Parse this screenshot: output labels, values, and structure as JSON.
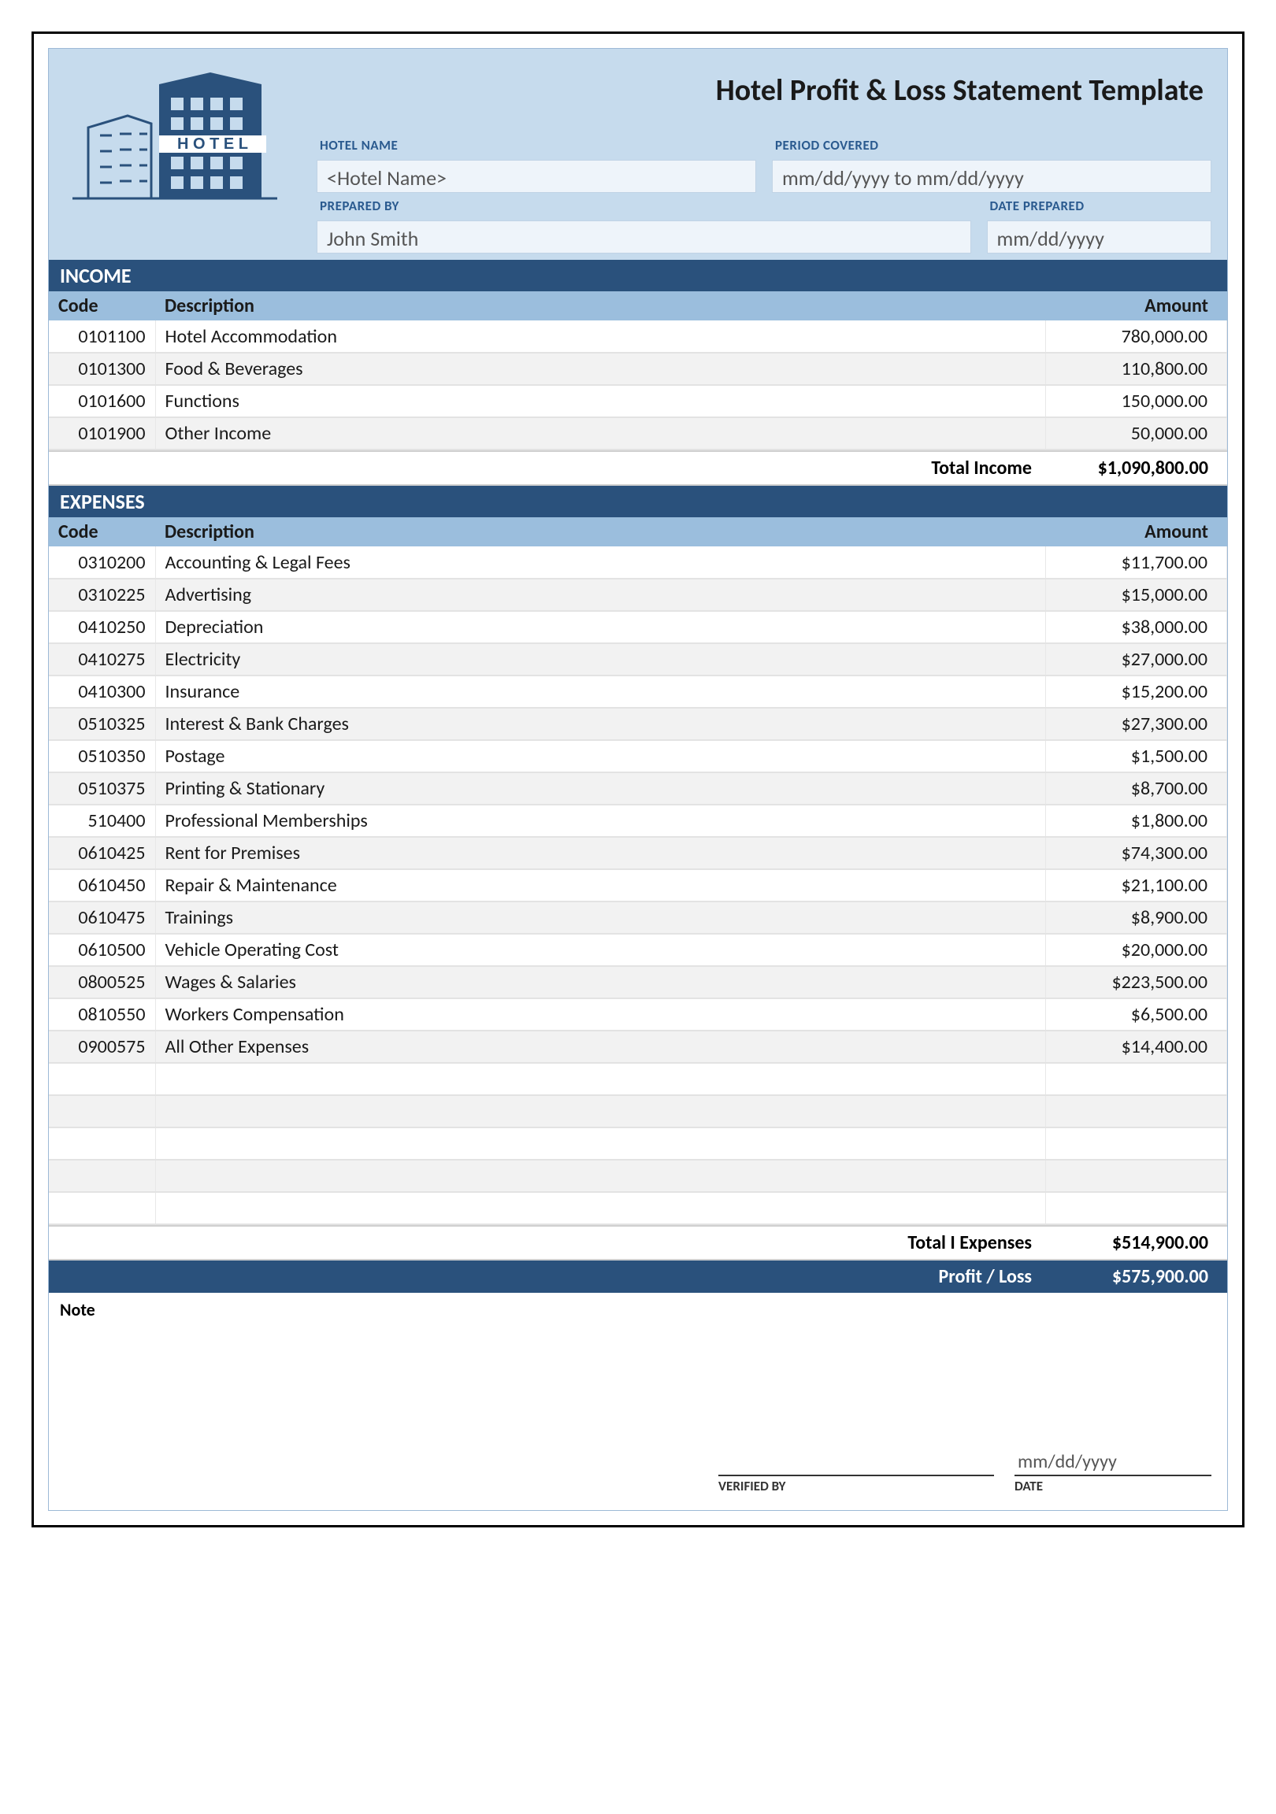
{
  "title": "Hotel Profit & Loss Statement Template",
  "meta": {
    "hotel_name_label": "HOTEL NAME",
    "hotel_name_value": "<Hotel Name>",
    "period_label": "PERIOD COVERED",
    "period_value": "mm/dd/yyyy to mm/dd/yyyy",
    "prepared_by_label": "PREPARED BY",
    "prepared_by_value": "John Smith",
    "date_prepared_label": "DATE PREPARED",
    "date_prepared_value": "mm/dd/yyyy"
  },
  "income": {
    "title": "INCOME",
    "col_code": "Code",
    "col_desc": "Description",
    "col_amount": "Amount",
    "rows": [
      {
        "code": "0101100",
        "desc": "Hotel Accommodation",
        "amount": "780,000.00"
      },
      {
        "code": "0101300",
        "desc": "Food & Beverages",
        "amount": "110,800.00"
      },
      {
        "code": "0101600",
        "desc": "Functions",
        "amount": "150,000.00"
      },
      {
        "code": "0101900",
        "desc": "Other Income",
        "amount": "50,000.00"
      }
    ],
    "total_label": "Total Income",
    "total_value": "$1,090,800.00"
  },
  "expenses": {
    "title": "EXPENSES",
    "col_code": "Code",
    "col_desc": "Description",
    "col_amount": "Amount",
    "rows": [
      {
        "code": "0310200",
        "desc": "Accounting & Legal Fees",
        "amount": "$11,700.00"
      },
      {
        "code": "0310225",
        "desc": "Advertising",
        "amount": "$15,000.00"
      },
      {
        "code": "0410250",
        "desc": "Depreciation",
        "amount": "$38,000.00"
      },
      {
        "code": "0410275",
        "desc": "Electricity",
        "amount": "$27,000.00"
      },
      {
        "code": "0410300",
        "desc": "Insurance",
        "amount": "$15,200.00"
      },
      {
        "code": "0510325",
        "desc": "Interest & Bank Charges",
        "amount": "$27,300.00"
      },
      {
        "code": "0510350",
        "desc": "Postage",
        "amount": "$1,500.00"
      },
      {
        "code": "0510375",
        "desc": "Printing & Stationary",
        "amount": "$8,700.00"
      },
      {
        "code": "510400",
        "desc": "Professional Memberships",
        "amount": "$1,800.00"
      },
      {
        "code": "0610425",
        "desc": "Rent for Premises",
        "amount": "$74,300.00"
      },
      {
        "code": "0610450",
        "desc": "Repair & Maintenance",
        "amount": "$21,100.00"
      },
      {
        "code": "0610475",
        "desc": "Trainings",
        "amount": "$8,900.00"
      },
      {
        "code": "0610500",
        "desc": "Vehicle Operating Cost",
        "amount": "$20,000.00"
      },
      {
        "code": "0800525",
        "desc": "Wages & Salaries",
        "amount": "$223,500.00"
      },
      {
        "code": "0810550",
        "desc": "Workers Compensation",
        "amount": "$6,500.00"
      },
      {
        "code": "0900575",
        "desc": "All Other Expenses",
        "amount": "$14,400.00"
      }
    ],
    "blank_count": 5,
    "total_label": "Total I Expenses",
    "total_value": "$514,900.00"
  },
  "profit_loss": {
    "label": "Profit / Loss",
    "value": "$575,900.00"
  },
  "note_label": "Note",
  "footer": {
    "verified_by_label": "VERIFIED BY",
    "date_label": "DATE",
    "date_value": "mm/dd/yyyy"
  },
  "colors": {
    "header_bg": "#c6dbed",
    "bar_dark": "#2a517c",
    "col_header_bg": "#9bbedd",
    "input_bg": "#eef4fa",
    "row_alt": "#f2f2f2",
    "meta_label_color": "#2a5a8f"
  }
}
